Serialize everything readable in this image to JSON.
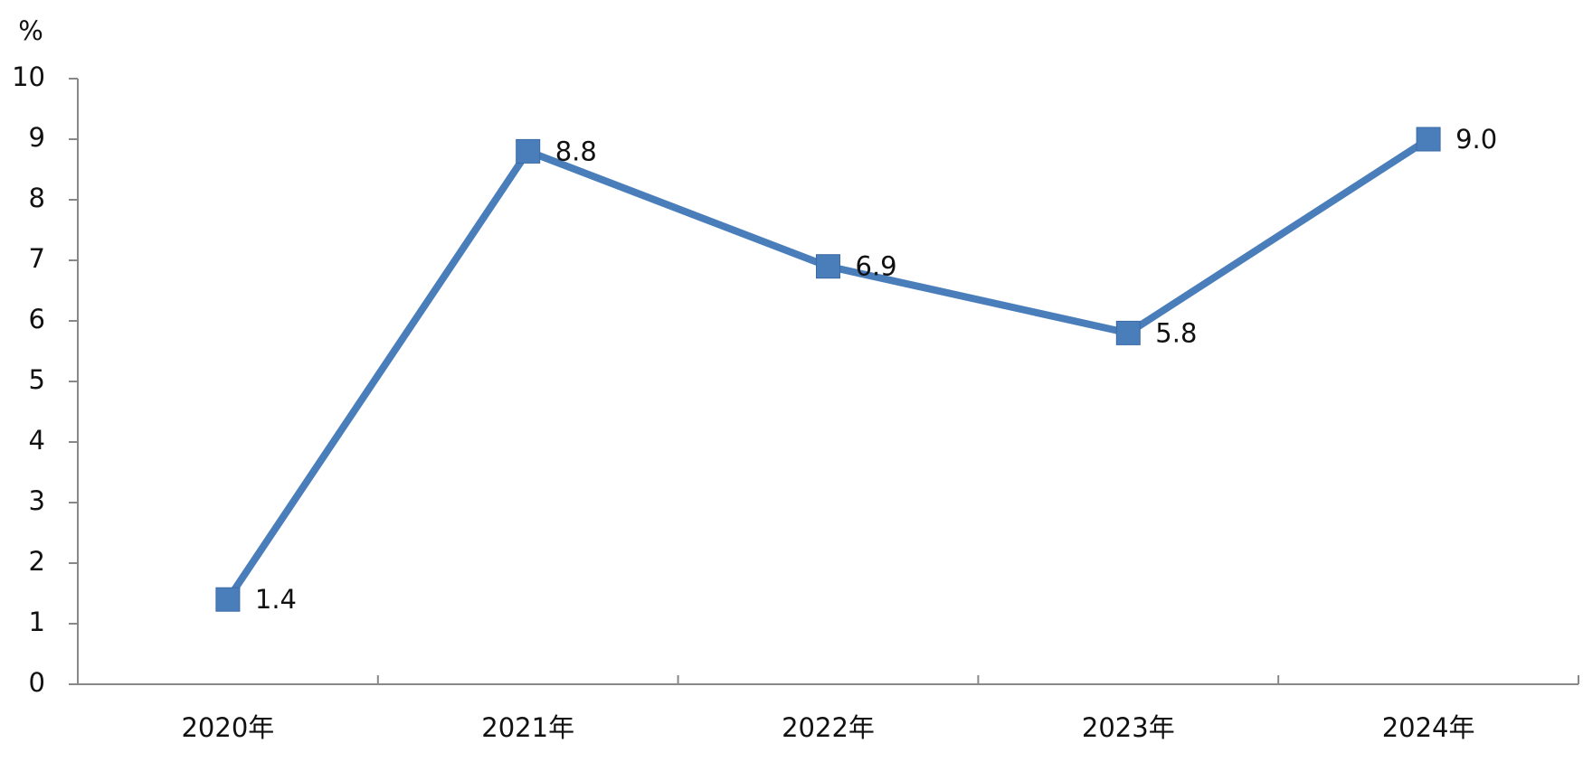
{
  "chart_data": {
    "type": "line",
    "y_label": "%",
    "categories": [
      "2020年",
      "2021年",
      "2022年",
      "2023年",
      "2024年"
    ],
    "series": [
      {
        "color": "#4a7ebb",
        "values": [
          1.4,
          8.8,
          6.9,
          5.8,
          9.0
        ],
        "value_labels": [
          "1.4",
          "8.8",
          "6.9",
          "5.8",
          "9.0"
        ]
      }
    ],
    "ylim": [
      0,
      10
    ],
    "yticks": [
      0,
      1,
      2,
      3,
      4,
      5,
      6,
      7,
      8,
      9,
      10
    ],
    "grid": false
  }
}
